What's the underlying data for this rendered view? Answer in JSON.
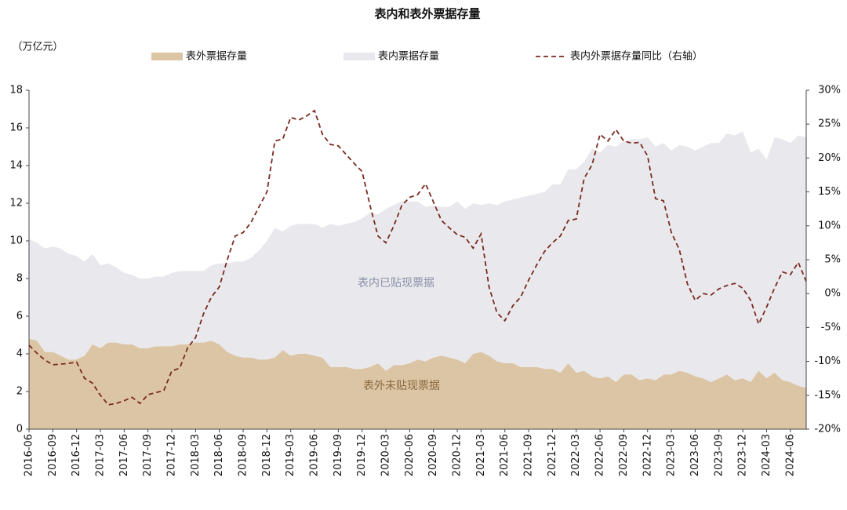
{
  "chart_data": {
    "type": "area",
    "title": "表内和表外票据存量",
    "y_label": "（万亿元）",
    "annotations": [
      "表内已贴现票据",
      "表外未贴现票据"
    ],
    "stacked": true,
    "categories": [
      "2016-06",
      null,
      null,
      "2016-09",
      null,
      null,
      "2016-12",
      null,
      null,
      "2017-03",
      null,
      null,
      "2017-06",
      null,
      null,
      "2017-09",
      null,
      null,
      "2017-12",
      null,
      null,
      "2018-03",
      null,
      null,
      "2018-06",
      null,
      null,
      "2018-09",
      null,
      null,
      "2018-12",
      null,
      null,
      "2019-03",
      null,
      null,
      "2019-06",
      null,
      null,
      "2019-09",
      null,
      null,
      "2019-12",
      null,
      null,
      "2020-03",
      null,
      null,
      "2020-06",
      null,
      null,
      "2020-09",
      null,
      null,
      "2020-12",
      null,
      null,
      "2021-03",
      null,
      null,
      "2021-06",
      null,
      null,
      "2021-09",
      null,
      null,
      "2021-12",
      null,
      null,
      "2022-03",
      null,
      null,
      "2022-06",
      null,
      null,
      "2022-09",
      null,
      null,
      "2022-12",
      null,
      null,
      "2023-03",
      null,
      null,
      "2023-06",
      null,
      null,
      "2023-09",
      null,
      null,
      "2023-12",
      null,
      null,
      "2024-03",
      null,
      null,
      "2024-06",
      null,
      null
    ],
    "series": [
      {
        "name": "表外票据存量",
        "type": "area",
        "color": "#dcc5a5",
        "values": [
          4.8,
          4.7,
          4.1,
          4.1,
          3.9,
          3.7,
          3.7,
          3.9,
          4.5,
          4.3,
          4.6,
          4.6,
          4.5,
          4.5,
          4.3,
          4.3,
          4.4,
          4.4,
          4.4,
          4.5,
          4.5,
          4.6,
          4.6,
          4.7,
          4.5,
          4.1,
          3.9,
          3.8,
          3.8,
          3.7,
          3.7,
          3.8,
          4.2,
          3.9,
          4.0,
          4.0,
          3.9,
          3.8,
          3.3,
          3.3,
          3.3,
          3.2,
          3.2,
          3.3,
          3.5,
          3.1,
          3.4,
          3.4,
          3.5,
          3.7,
          3.6,
          3.8,
          3.9,
          3.8,
          3.7,
          3.5,
          4.0,
          4.1,
          3.9,
          3.6,
          3.5,
          3.5,
          3.3,
          3.3,
          3.3,
          3.2,
          3.2,
          3.0,
          3.5,
          3.0,
          3.1,
          2.8,
          2.7,
          2.8,
          2.5,
          2.9,
          2.9,
          2.6,
          2.7,
          2.6,
          2.9,
          2.9,
          3.1,
          3.0,
          2.8,
          2.7,
          2.5,
          2.7,
          2.9,
          2.6,
          2.7,
          2.5,
          3.1,
          2.7,
          3.0,
          2.6,
          2.5,
          2.3,
          2.2
        ]
      },
      {
        "name": "表内票据存量",
        "type": "area",
        "color": "#e9e9ed",
        "values": [
          5.3,
          5.2,
          5.5,
          5.6,
          5.7,
          5.6,
          5.5,
          5.0,
          4.8,
          4.4,
          4.2,
          4.0,
          3.8,
          3.7,
          3.7,
          3.7,
          3.7,
          3.7,
          3.9,
          3.9,
          3.9,
          3.8,
          3.8,
          4.0,
          4.3,
          4.7,
          5.0,
          5.1,
          5.3,
          5.8,
          6.3,
          6.9,
          6.3,
          6.9,
          6.9,
          6.9,
          7.0,
          6.9,
          7.6,
          7.5,
          7.6,
          7.8,
          8.0,
          8.2,
          7.9,
          8.6,
          8.5,
          8.7,
          8.6,
          8.4,
          8.2,
          8.1,
          7.9,
          8.0,
          8.4,
          8.2,
          8.0,
          7.8,
          8.1,
          8.3,
          8.6,
          8.7,
          9.0,
          9.1,
          9.2,
          9.4,
          9.8,
          10.0,
          10.3,
          10.8,
          11.1,
          12.1,
          12.0,
          12.3,
          12.5,
          12.4,
          12.5,
          12.8,
          12.8,
          12.4,
          12.3,
          11.9,
          12.0,
          12.0,
          12.0,
          12.3,
          12.7,
          12.5,
          12.8,
          13.0,
          13.1,
          12.2,
          11.8,
          11.6,
          12.5,
          12.8,
          12.7,
          13.3,
          13.3
        ]
      },
      {
        "name": "表内外票据存量同比（右轴）",
        "type": "line",
        "axis": "y2",
        "color": "#7a2a1e",
        "values": [
          -7.6,
          -8.8,
          -9.8,
          -10.5,
          -10.4,
          -10.3,
          -10.1,
          -12.5,
          -13.2,
          -15,
          -16.4,
          -16.2,
          -15.8,
          -15.3,
          -16.2,
          -14.9,
          -14.6,
          -14.3,
          -11.4,
          -11,
          -8,
          -6.5,
          -3,
          -0.5,
          1,
          5,
          8.5,
          9,
          10.5,
          12.8,
          15,
          22.5,
          22.8,
          26,
          25.6,
          26.2,
          27,
          23.5,
          22,
          21.8,
          20.5,
          19.2,
          18,
          13,
          8.5,
          7.5,
          10,
          13,
          14.2,
          14.6,
          16.2,
          13.5,
          10.8,
          9.7,
          8.7,
          8.3,
          6.7,
          8.8,
          1,
          -2.8,
          -4,
          -1.8,
          -0.5,
          2,
          4.2,
          6.2,
          7.5,
          8.5,
          10.8,
          11,
          17,
          19,
          23.5,
          22.5,
          24.2,
          22.5,
          22.2,
          22.3,
          20.3,
          14,
          13.7,
          9,
          6.5,
          1.5,
          -1,
          0,
          -0.2,
          0.7,
          1.2,
          1.5,
          0.8,
          -1,
          -4.5,
          -2,
          0.8,
          3.2,
          2.8,
          4.6,
          1.8
        ]
      }
    ],
    "ylim": [
      0,
      18
    ],
    "yticks": [
      0,
      2,
      4,
      6,
      8,
      10,
      12,
      14,
      16,
      18
    ],
    "y2lim": [
      -20,
      30
    ],
    "y2ticks": [
      {
        "value": -20,
        "label": "-20%"
      },
      {
        "value": -15,
        "label": "-15%"
      },
      {
        "value": -10,
        "label": "-10%"
      },
      {
        "value": -5,
        "label": "-5%"
      },
      {
        "value": 0,
        "label": "0%"
      },
      {
        "value": 5,
        "label": "5%"
      },
      {
        "value": 10,
        "label": "10%"
      },
      {
        "value": 15,
        "label": "15%"
      },
      {
        "value": 20,
        "label": "20%"
      },
      {
        "value": 25,
        "label": "25%"
      },
      {
        "value": 30,
        "label": "30%"
      }
    ],
    "grid": false,
    "legend": "top"
  }
}
